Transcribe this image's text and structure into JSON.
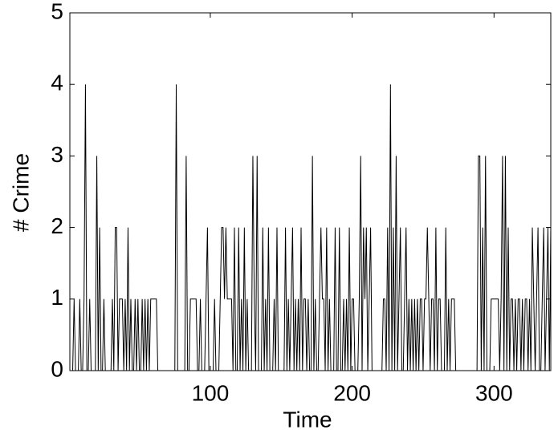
{
  "chart_data": {
    "type": "line",
    "xlabel": "Time",
    "ylabel": "# Crime",
    "color": "#000000",
    "xlim": [
      1,
      340
    ],
    "ylim": [
      0,
      5
    ],
    "xticks": [
      100,
      200,
      300
    ],
    "yticks": [
      0,
      1,
      2,
      3,
      4,
      5
    ],
    "x": [
      1,
      2,
      3,
      4,
      5,
      6,
      7,
      8,
      9,
      10,
      11,
      12,
      13,
      14,
      15,
      16,
      17,
      18,
      19,
      20,
      21,
      22,
      23,
      24,
      25,
      26,
      27,
      28,
      29,
      30,
      31,
      32,
      33,
      34,
      35,
      36,
      37,
      38,
      39,
      40,
      41,
      42,
      43,
      44,
      45,
      46,
      47,
      48,
      49,
      50,
      51,
      52,
      53,
      54,
      55,
      56,
      57,
      58,
      59,
      60,
      61,
      62,
      63,
      64,
      65,
      66,
      67,
      68,
      69,
      70,
      71,
      72,
      73,
      74,
      75,
      76,
      77,
      78,
      79,
      80,
      81,
      82,
      83,
      84,
      85,
      86,
      87,
      88,
      89,
      90,
      91,
      92,
      93,
      94,
      95,
      96,
      97,
      98,
      99,
      100,
      101,
      102,
      103,
      104,
      105,
      106,
      107,
      108,
      109,
      110,
      111,
      112,
      113,
      114,
      115,
      116,
      117,
      118,
      119,
      120,
      121,
      122,
      123,
      124,
      125,
      126,
      127,
      128,
      129,
      130,
      131,
      132,
      133,
      134,
      135,
      136,
      137,
      138,
      139,
      140,
      141,
      142,
      143,
      144,
      145,
      146,
      147,
      148,
      149,
      150,
      151,
      152,
      153,
      154,
      155,
      156,
      157,
      158,
      159,
      160,
      161,
      162,
      163,
      164,
      165,
      166,
      167,
      168,
      169,
      170,
      171,
      172,
      173,
      174,
      175,
      176,
      177,
      178,
      179,
      180,
      181,
      182,
      183,
      184,
      185,
      186,
      187,
      188,
      189,
      190,
      191,
      192,
      193,
      194,
      195,
      196,
      197,
      198,
      199,
      200,
      201,
      202,
      203,
      204,
      205,
      206,
      207,
      208,
      209,
      210,
      211,
      212,
      213,
      214,
      215,
      216,
      217,
      218,
      219,
      220,
      221,
      222,
      223,
      224,
      225,
      226,
      227,
      228,
      229,
      230,
      231,
      232,
      233,
      234,
      235,
      236,
      237,
      238,
      239,
      240,
      241,
      242,
      243,
      244,
      245,
      246,
      247,
      248,
      249,
      250,
      251,
      252,
      253,
      254,
      255,
      256,
      257,
      258,
      259,
      260,
      261,
      262,
      263,
      264,
      265,
      266,
      267,
      268,
      269,
      270,
      271,
      272,
      273,
      274,
      275,
      276,
      277,
      278,
      279,
      280,
      281,
      282,
      283,
      284,
      285,
      286,
      287,
      288,
      289,
      290,
      291,
      292,
      293,
      294,
      295,
      296,
      297,
      298,
      299,
      300,
      301,
      302,
      303,
      304,
      305,
      306,
      307,
      308,
      309,
      310,
      311,
      312,
      313,
      314,
      315,
      316,
      317,
      318,
      319,
      320,
      321,
      322,
      323,
      324,
      325,
      326,
      327,
      328,
      329,
      330,
      331,
      332,
      333,
      334,
      335,
      336,
      337,
      338,
      339,
      340
    ],
    "values": [
      0,
      0,
      0,
      1,
      0,
      0,
      0,
      1,
      0,
      0,
      1,
      4,
      0,
      0,
      1,
      0,
      0,
      0,
      0,
      3,
      0,
      2,
      0,
      0,
      1,
      0,
      0,
      0,
      0,
      0,
      1,
      0,
      2,
      2,
      0,
      1,
      1,
      1,
      0,
      1,
      0,
      2,
      0,
      1,
      0,
      0,
      1,
      0,
      1,
      0,
      0,
      1,
      0,
      1,
      0,
      1,
      0,
      1,
      1,
      1,
      1,
      1,
      0,
      0,
      0,
      0,
      0,
      0,
      0,
      0,
      0,
      0,
      0,
      0,
      0,
      4,
      0,
      0,
      0,
      0,
      0,
      0,
      3,
      0,
      0,
      1,
      1,
      1,
      1,
      1,
      0,
      0,
      1,
      0,
      0,
      0,
      1,
      2,
      0,
      0,
      0,
      0,
      1,
      0,
      0,
      0,
      1,
      2,
      2,
      1,
      2,
      1,
      1,
      1,
      1,
      0,
      2,
      0,
      0,
      2,
      0,
      1,
      0,
      2,
      0,
      1,
      0,
      0,
      0,
      3,
      1,
      0,
      3,
      0,
      0,
      0,
      2,
      0,
      1,
      0,
      2,
      0,
      0,
      0,
      1,
      0,
      2,
      0,
      0,
      0,
      0,
      0,
      2,
      0,
      1,
      0,
      1,
      2,
      0,
      1,
      0,
      1,
      0,
      2,
      0,
      1,
      1,
      0,
      1,
      0,
      0,
      3,
      0,
      1,
      0,
      0,
      1,
      2,
      1,
      1,
      0,
      2,
      0,
      1,
      0,
      0,
      0,
      2,
      0,
      0,
      2,
      0,
      0,
      1,
      0,
      1,
      0,
      2,
      0,
      1,
      1,
      0,
      0,
      0,
      1,
      3,
      0,
      2,
      1,
      2,
      0,
      1,
      2,
      0,
      0,
      0,
      0,
      0,
      0,
      0,
      0,
      1,
      1,
      0,
      2,
      0,
      4,
      0,
      2,
      0,
      3,
      0,
      1,
      2,
      0,
      0,
      1,
      2,
      0,
      1,
      0,
      1,
      0,
      1,
      0,
      1,
      0,
      1,
      1,
      0,
      1,
      1,
      2,
      1,
      0,
      1,
      1,
      0,
      2,
      0,
      1,
      1,
      0,
      0,
      0,
      2,
      0,
      1,
      0,
      1,
      1,
      1,
      0,
      0,
      0,
      0,
      0,
      0,
      0,
      0,
      0,
      0,
      0,
      0,
      0,
      0,
      0,
      0,
      3,
      3,
      0,
      2,
      0,
      3,
      0,
      0,
      0,
      1,
      1,
      1,
      1,
      1,
      1,
      0,
      1,
      3,
      0,
      3,
      0,
      2,
      0,
      1,
      1,
      0,
      1,
      0,
      1,
      1,
      0,
      1,
      0,
      1,
      1,
      0,
      1,
      0,
      2,
      1,
      0,
      1,
      2,
      0,
      0,
      1,
      2,
      0,
      1,
      2,
      0,
      2
    ]
  }
}
